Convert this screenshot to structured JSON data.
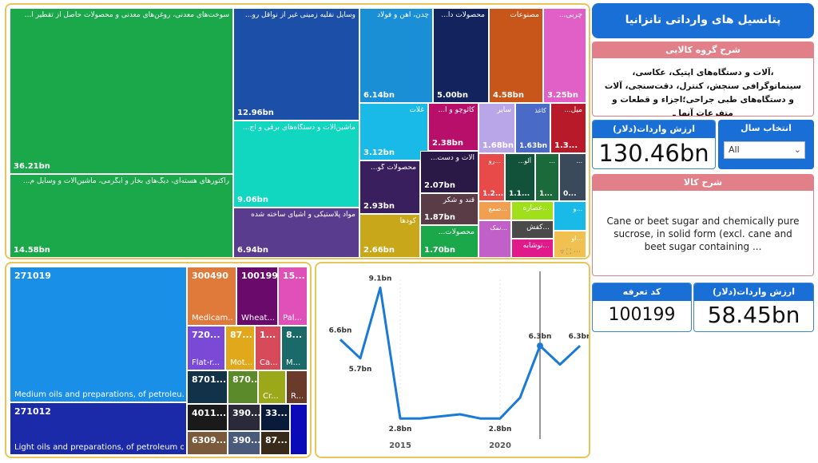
{
  "title": "پتانسیل های وارداتی تانزانیا",
  "group_desc": {
    "header": "شرح گروه کالایی",
    "text": "،آلات و دستگاه‌های اپتیک، عکاسی، سینماتوگرافی سنجش، کنترل، دقت‌سنجی، آلات و دستگاه‌های طبی جراحی؛اجزاء و قطعات و متفرعات آنها ـ"
  },
  "year_filter": {
    "header": "انتخاب سال",
    "selected": "All"
  },
  "import_value_total": {
    "header": "ارزش واردات(دلار)",
    "value": "130.46bn"
  },
  "item_desc": {
    "header": "شرح کالا",
    "text": "Cane or beet sugar and chemically pure sucrose, in solid form (excl. cane and beet sugar containing ..."
  },
  "tariff": {
    "header": "کد تعرفه",
    "value": "100199"
  },
  "import_value_item": {
    "header": "ارزش واردات(دلار)",
    "value": "58.45bn"
  },
  "treemap_groups": [
    {
      "label": "سوخت‌های معدنی، روغن‌های معدنی و محصولات حاصل از تقطیر آ...",
      "value": "36.21bn",
      "color": "#1aa84a"
    },
    {
      "label": "رآکتورهای هسته‌ای، دیگ‌های بخار و آبگرمی، ماشین‌آلات و وسایل م...",
      "value": "14.58bn",
      "color": "#1aa84a"
    },
    {
      "label": "وسایل نقلیه زمینی غیر از نواقل رو...",
      "value": "12.96bn",
      "color": "#1b4fa8"
    },
    {
      "label": "ماشین‌آلات و دستگاه‌های برقی و اج...",
      "value": "9.06bn",
      "color": "#11d6c0"
    },
    {
      "label": "مواد پلاستیکی و اشیای ساخته شده",
      "value": "6.94bn",
      "color": "#5a3c8e"
    },
    {
      "label": "چدن، آهن و فولاد",
      "value": "6.14bn",
      "color": "#1a8fd6"
    },
    {
      "label": "محصولات دا...",
      "value": "5.00bn",
      "color": "#12235e"
    },
    {
      "label": "مصنوعات",
      "value": "4.58bn",
      "color": "#c8561a"
    },
    {
      "label": "چربی...",
      "value": "3.25bn",
      "color": "#e060c8"
    },
    {
      "label": "غلات",
      "value": "3.12bn",
      "color": "#19b9e8"
    },
    {
      "label": "محصولات گو...",
      "value": "2.93bn",
      "color": "#3a1f5e"
    },
    {
      "label": "کودها",
      "value": "2.66bn",
      "color": "#c8a81a"
    },
    {
      "label": "کائوچو و ا...",
      "value": "2.38bn",
      "color": "#b8106a"
    },
    {
      "label": "آلات و دست...",
      "value": "2.07bn",
      "color": "#2a1846"
    },
    {
      "label": "قند و شکر",
      "value": "1.87bn",
      "color": "#5a3c46"
    },
    {
      "label": "محصولات...",
      "value": "1.70bn",
      "color": "#1aa84a"
    },
    {
      "label": "سایر",
      "value": "1.68bn",
      "color": "#b9a6e8"
    },
    {
      "label": "کاغذ",
      "value": "1.63bn",
      "color": "#4a6ac8"
    },
    {
      "label": "میل...",
      "value": "1.3...",
      "color": "#b81a2a"
    },
    {
      "label": "...رو",
      "value": "1.2...",
      "color": "#e84a4a"
    },
    {
      "label": "آلو...",
      "value": "1.1...",
      "color": "#12523a"
    },
    {
      "label": "...",
      "value": "1...",
      "color": "#1a6a3a"
    },
    {
      "label": "...",
      "value": "0...",
      "color": "#3a4a5a"
    },
    {
      "label": "...صمغ",
      "value": "",
      "color": "#f0a050"
    },
    {
      "label": "...عصاره",
      "value": "",
      "color": "#a0e01a"
    },
    {
      "label": "...و",
      "value": "",
      "color": "#19b9e8"
    },
    {
      "label": "...نمک",
      "value": "",
      "color": "#c060c8"
    },
    {
      "label": "...کفش",
      "value": "",
      "color": "#4a4a4a"
    },
    {
      "label": "...نوشابه",
      "value": "",
      "color": "#e01a8a"
    },
    {
      "label": "...او",
      "value": "",
      "color": "#f0c050"
    }
  ],
  "treemap_items": [
    {
      "code": "271019",
      "desc": "Medium oils and preparations, of petroleu...",
      "color": "#1a8fe8"
    },
    {
      "code": "271012",
      "desc": "Light oils and preparations, of petroleum or...",
      "color": "#1a2aa8"
    },
    {
      "code": "300490",
      "desc": "Medicam...",
      "color": "#e07a3a"
    },
    {
      "code": "100199",
      "desc": "Wheat...",
      "color": "#6a0a6a"
    },
    {
      "code": "15...",
      "desc": "Pal...",
      "color": "#e050b8"
    },
    {
      "code": "720...",
      "desc": "Flat-r...",
      "color": "#7a4ad6"
    },
    {
      "code": "87...",
      "desc": "Mot...",
      "color": "#e0a81a"
    },
    {
      "code": "1...",
      "desc": "Ca...",
      "color": "#d64a5a"
    },
    {
      "code": "8...",
      "desc": "M...",
      "color": "#1a6a6a"
    },
    {
      "code": "8701...",
      "desc": "",
      "color": "#12324a"
    },
    {
      "code": "870...",
      "desc": "",
      "color": "#5a8a2a"
    },
    {
      "code": "",
      "desc": "Cr...",
      "color": "#9aa81a"
    },
    {
      "code": "",
      "desc": "R...",
      "color": "#6a3a2a"
    },
    {
      "code": "4011...",
      "desc": "",
      "color": "#1a1a1a"
    },
    {
      "code": "390...",
      "desc": "",
      "color": "#2a2a3a"
    },
    {
      "code": "33...",
      "desc": "",
      "color": "#0a1a3a"
    },
    {
      "code": "6309...",
      "desc": "",
      "color": "#7a5a3a"
    },
    {
      "code": "390...",
      "desc": "",
      "color": "#4a5a7a"
    },
    {
      "code": "87...",
      "desc": "",
      "color": "#3a2a1a"
    },
    {
      "code": "",
      "desc": "",
      "color": "#0a0ab8"
    }
  ],
  "chart_data": {
    "type": "line",
    "x": [
      2012,
      2013,
      2014,
      2015,
      2016,
      2017,
      2018,
      2019,
      2020,
      2021,
      2022,
      2023,
      2024
    ],
    "values": [
      6.6,
      5.7,
      9.1,
      2.8,
      2.8,
      2.9,
      3.0,
      2.8,
      2.8,
      3.8,
      6.3,
      5.4,
      6.3
    ],
    "point_labels": [
      "6.6bn",
      "5.7bn",
      "9.1bn",
      "2.8bn",
      "",
      "",
      "",
      "",
      "2.8bn",
      "",
      "6.3bn",
      "",
      "6.3bn"
    ],
    "x_ticks": [
      "2015",
      "2020"
    ],
    "line_color": "#1a7ad6",
    "selected_index": 10
  }
}
